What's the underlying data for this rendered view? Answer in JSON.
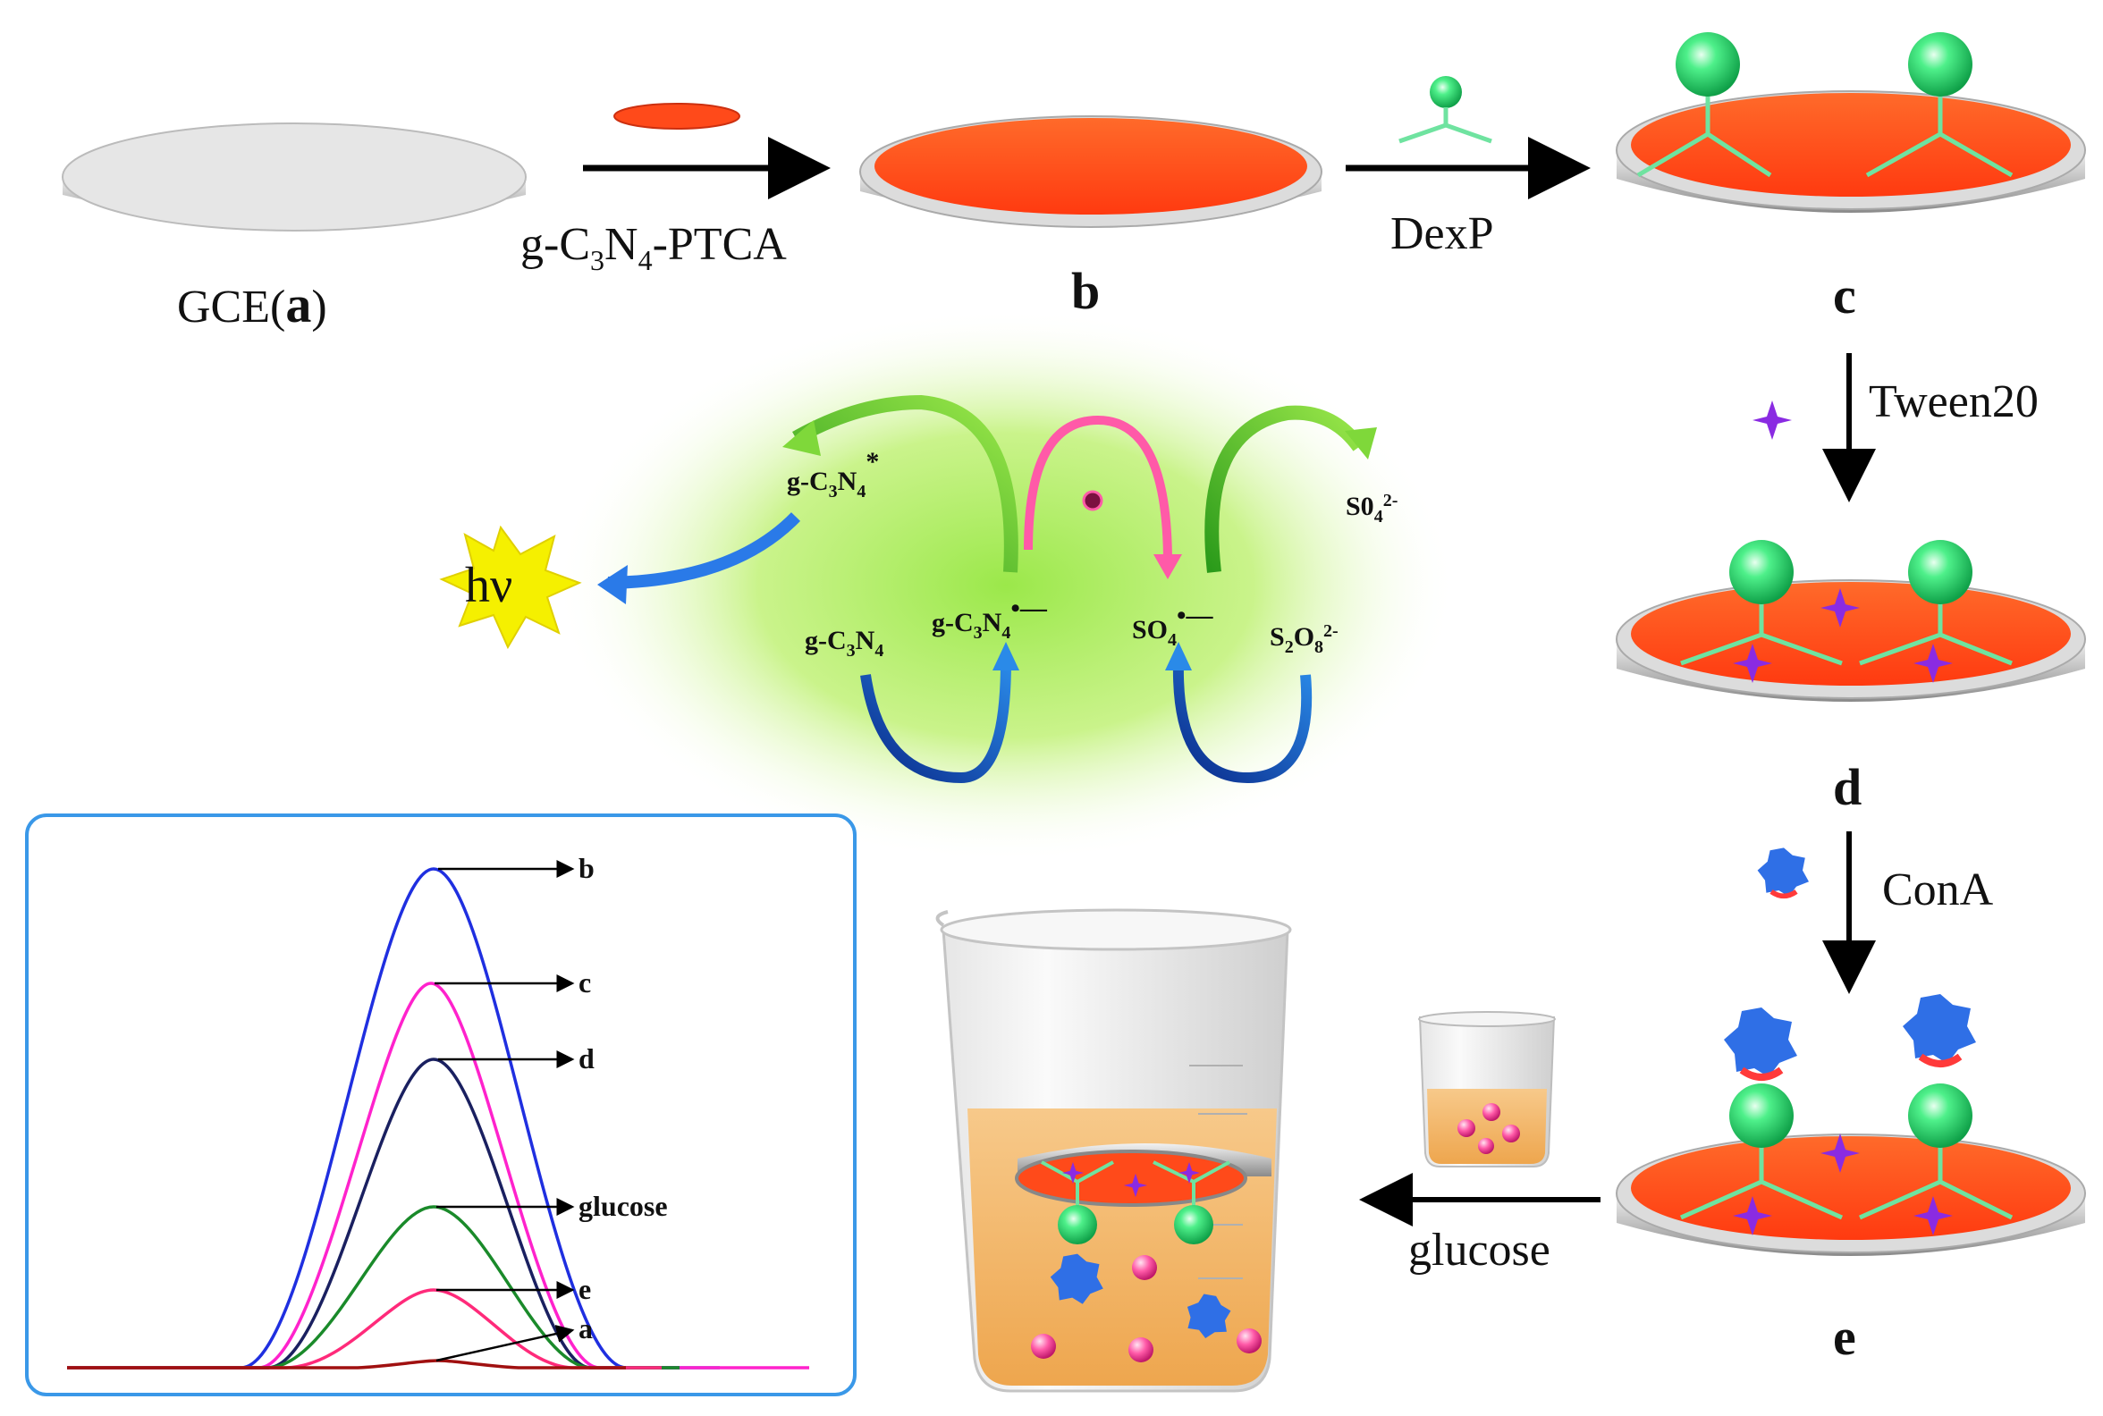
{
  "figure": {
    "steps": {
      "a": {
        "prefix": "GCE(",
        "letter": "a",
        "suffix": ")"
      },
      "b": "b",
      "c": "c",
      "d": "d",
      "e": "e"
    },
    "reagents": {
      "gcn_ptca": {
        "p1": "g-C",
        "s1": "3",
        "p2": "N",
        "s2": "4",
        "p3": "-PTCA"
      },
      "dexp": "DexP",
      "tween": "Tween20",
      "cona": "ConA",
      "glucose": "glucose"
    },
    "mechanism": {
      "hv": "hν",
      "gcn_excited": {
        "base": "g-C",
        "s1": "3",
        "n": "N",
        "s2": "4",
        "sup": "*"
      },
      "gcn": {
        "base": "g-C",
        "s1": "3",
        "n": "N",
        "s2": "4"
      },
      "gcn_radical": {
        "base": "g-C",
        "s1": "3",
        "n": "N",
        "s2": "4",
        "sup": "•—"
      },
      "so4_radical": {
        "base": "SO",
        "s1": "4",
        "sup": "•—"
      },
      "so4_product": {
        "base": "S0",
        "s1": "4",
        "sup": "2-"
      },
      "s2o8": {
        "base": "S",
        "s1": "2",
        "o": "O",
        "s2": "8",
        "sup": "2-"
      }
    },
    "plot": {
      "curve_labels": [
        "b",
        "c",
        "d",
        "glucose",
        "e",
        "a"
      ]
    },
    "colors": {
      "electrode_red": "#ff4a1a",
      "sphere_green": "#2ee86a",
      "linker_green": "#6fe3a0",
      "tween_purple": "#8a2be2",
      "cona_blue": "#2f6fe6",
      "glow_green": "#a8f05a",
      "curve_b": "#1f2fe0",
      "curve_c": "#ff22cc",
      "curve_d": "#1a2060",
      "curve_glucose": "#1a8a2a",
      "curve_e": "#ff2a7a",
      "curve_a": "#a01010"
    }
  }
}
